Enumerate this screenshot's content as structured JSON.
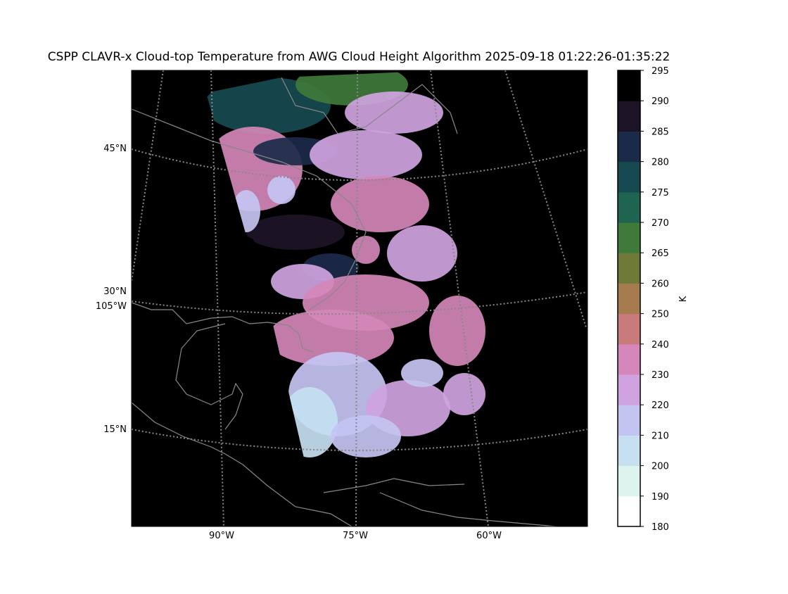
{
  "title": "CSPP CLAVR-x Cloud-top Temperature from AWG Cloud Height Algorithm 2025-09-18 01:22:26-01:35:22",
  "map": {
    "lat_labels": [
      "45°N",
      "30°N",
      "15°N"
    ],
    "lon_labels": [
      "105°W",
      "90°W",
      "75°W",
      "60°W"
    ]
  },
  "colorbar": {
    "label": "K",
    "bounds": [
      180,
      190,
      200,
      210,
      220,
      230,
      240,
      250,
      260,
      265,
      270,
      275,
      280,
      285,
      290,
      295
    ],
    "colors": [
      "#ffffff",
      "#dff3ee",
      "#c6e0f0",
      "#c4c4f2",
      "#cfa3e0",
      "#d487b8",
      "#c97a7a",
      "#a67b4d",
      "#6f7a38",
      "#3f7a3a",
      "#1f6450",
      "#174a50",
      "#1c2a4a",
      "#1d1327",
      "#000000"
    ]
  }
}
